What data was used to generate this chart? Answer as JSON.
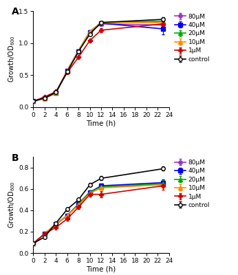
{
  "panel_A": {
    "title": "A",
    "xlabel": "Time (h)",
    "xlim": [
      0,
      24
    ],
    "ylim": [
      0,
      1.5
    ],
    "yticks": [
      0.0,
      0.5,
      1.0,
      1.5
    ],
    "xticks": [
      0,
      2,
      4,
      6,
      8,
      10,
      12,
      14,
      16,
      18,
      20,
      22,
      24
    ],
    "time": [
      0,
      2,
      4,
      6,
      8,
      10,
      12,
      23
    ],
    "series": {
      "80μM": {
        "color": "#9933cc",
        "marker": "o",
        "values": [
          0.09,
          0.14,
          0.22,
          0.57,
          0.88,
          1.18,
          1.3,
          1.28
        ]
      },
      "40μM": {
        "color": "#0000ee",
        "marker": "s",
        "values": [
          0.09,
          0.14,
          0.22,
          0.57,
          0.87,
          1.17,
          1.31,
          1.22
        ]
      },
      "20μM": {
        "color": "#00aa00",
        "marker": "^",
        "values": [
          0.09,
          0.14,
          0.22,
          0.56,
          0.88,
          1.18,
          1.32,
          1.34
        ]
      },
      "10μM": {
        "color": "#ff8800",
        "marker": "^",
        "values": [
          0.09,
          0.14,
          0.23,
          0.57,
          0.88,
          1.18,
          1.32,
          1.32
        ]
      },
      "1μM": {
        "color": "#cc0000",
        "marker": "P",
        "values": [
          0.09,
          0.16,
          0.24,
          0.54,
          0.78,
          1.04,
          1.2,
          1.3
        ]
      },
      "control": {
        "color": "#000000",
        "marker": "o",
        "values": [
          0.09,
          0.14,
          0.23,
          0.55,
          0.87,
          1.14,
          1.32,
          1.37
        ],
        "open": true
      }
    },
    "errors": {
      "80μM": [
        0.005,
        0.01,
        0.01,
        0.015,
        0.015,
        0.015,
        0.02,
        0.04
      ],
      "40μM": [
        0.005,
        0.01,
        0.01,
        0.015,
        0.015,
        0.015,
        0.02,
        0.09
      ],
      "20μM": [
        0.005,
        0.01,
        0.01,
        0.015,
        0.015,
        0.015,
        0.02,
        0.03
      ],
      "10μM": [
        0.005,
        0.01,
        0.01,
        0.015,
        0.015,
        0.015,
        0.02,
        0.03
      ],
      "1μM": [
        0.005,
        0.01,
        0.01,
        0.015,
        0.015,
        0.02,
        0.03,
        0.03
      ],
      "control": [
        0.005,
        0.01,
        0.01,
        0.015,
        0.015,
        0.015,
        0.02,
        0.03
      ]
    }
  },
  "panel_B": {
    "title": "B",
    "xlabel": "Time (h)",
    "xlim": [
      0,
      24
    ],
    "ylim": [
      0.0,
      0.9
    ],
    "yticks": [
      0.0,
      0.2,
      0.4,
      0.6,
      0.8
    ],
    "xticks": [
      0,
      2,
      4,
      6,
      8,
      10,
      12,
      14,
      16,
      18,
      20,
      22,
      24
    ],
    "time": [
      0,
      2,
      4,
      6,
      8,
      10,
      12,
      23
    ],
    "series": {
      "80μM": {
        "color": "#9933cc",
        "marker": "o",
        "values": [
          0.09,
          0.18,
          0.27,
          0.35,
          0.46,
          0.57,
          0.62,
          0.65
        ]
      },
      "40μM": {
        "color": "#0000ee",
        "marker": "s",
        "values": [
          0.09,
          0.18,
          0.27,
          0.35,
          0.46,
          0.57,
          0.63,
          0.66
        ]
      },
      "20μM": {
        "color": "#00aa00",
        "marker": "^",
        "values": [
          0.09,
          0.18,
          0.27,
          0.35,
          0.46,
          0.57,
          0.62,
          0.65
        ]
      },
      "10μM": {
        "color": "#ff8800",
        "marker": "^",
        "values": [
          0.09,
          0.18,
          0.27,
          0.35,
          0.45,
          0.56,
          0.61,
          0.64
        ]
      },
      "1μM": {
        "color": "#cc0000",
        "marker": "P",
        "values": [
          0.09,
          0.18,
          0.24,
          0.32,
          0.43,
          0.55,
          0.55,
          0.63
        ]
      },
      "control": {
        "color": "#000000",
        "marker": "o",
        "values": [
          0.09,
          0.15,
          0.28,
          0.41,
          0.5,
          0.64,
          0.7,
          0.79
        ],
        "open": true
      }
    },
    "errors": {
      "80μM": [
        0.005,
        0.01,
        0.01,
        0.015,
        0.015,
        0.015,
        0.02,
        0.03
      ],
      "40μM": [
        0.005,
        0.01,
        0.01,
        0.015,
        0.015,
        0.015,
        0.02,
        0.03
      ],
      "20μM": [
        0.005,
        0.01,
        0.01,
        0.015,
        0.015,
        0.015,
        0.02,
        0.03
      ],
      "10μM": [
        0.005,
        0.01,
        0.01,
        0.015,
        0.015,
        0.015,
        0.02,
        0.03
      ],
      "1μM": [
        0.005,
        0.01,
        0.01,
        0.015,
        0.015,
        0.02,
        0.03,
        0.04
      ],
      "control": [
        0.005,
        0.01,
        0.01,
        0.015,
        0.015,
        0.015,
        0.02,
        0.02
      ]
    }
  },
  "legend_order": [
    "80μM",
    "40μM",
    "20μM",
    "10μM",
    "1μM",
    "control"
  ]
}
